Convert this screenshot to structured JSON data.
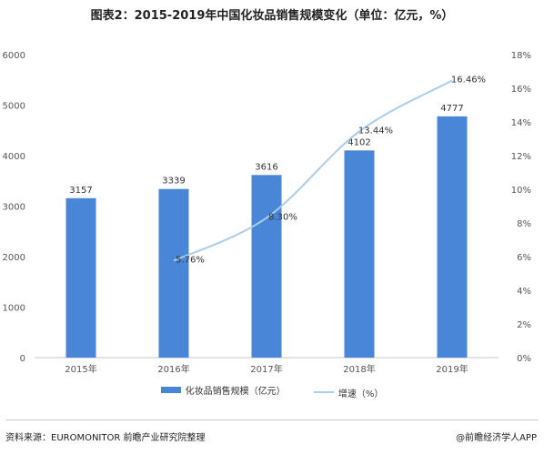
{
  "title": "图表2：2015-2019年中国化妆品销售规模变化（单位：亿元，%）",
  "chart_data": {
    "type": "bar",
    "categories": [
      "2015年",
      "2016年",
      "2017年",
      "2018年",
      "2019年"
    ],
    "series": [
      {
        "name": "化妆品销售规模（亿元）",
        "type": "bar",
        "axis": "left",
        "values": [
          3157,
          3339,
          3616,
          4102,
          4777
        ],
        "labels": [
          "3157",
          "3339",
          "3616",
          "4102",
          "4777"
        ]
      },
      {
        "name": "增速（%）",
        "type": "line",
        "axis": "right",
        "values": [
          null,
          5.76,
          8.3,
          13.44,
          16.46
        ],
        "labels": [
          "",
          "5.76%",
          "8.30%",
          "13.44%",
          "16.46%"
        ]
      }
    ],
    "ylim_left": [
      0,
      6000
    ],
    "yticks_left": [
      "0",
      "1000",
      "2000",
      "3000",
      "4000",
      "5000",
      "6000"
    ],
    "ylim_right": [
      0,
      18
    ],
    "yticks_right": [
      "0%",
      "2%",
      "4%",
      "6%",
      "8%",
      "10%",
      "12%",
      "14%",
      "16%",
      "18%"
    ],
    "legend_position": "bottom",
    "grid": false
  },
  "colors": {
    "bar": "#4a86d8",
    "line": "#a9cdea"
  },
  "footer": {
    "source": "资料来源：EUROMONITOR 前瞻产业研究院整理",
    "credit": "@前瞻经济学人APP"
  }
}
